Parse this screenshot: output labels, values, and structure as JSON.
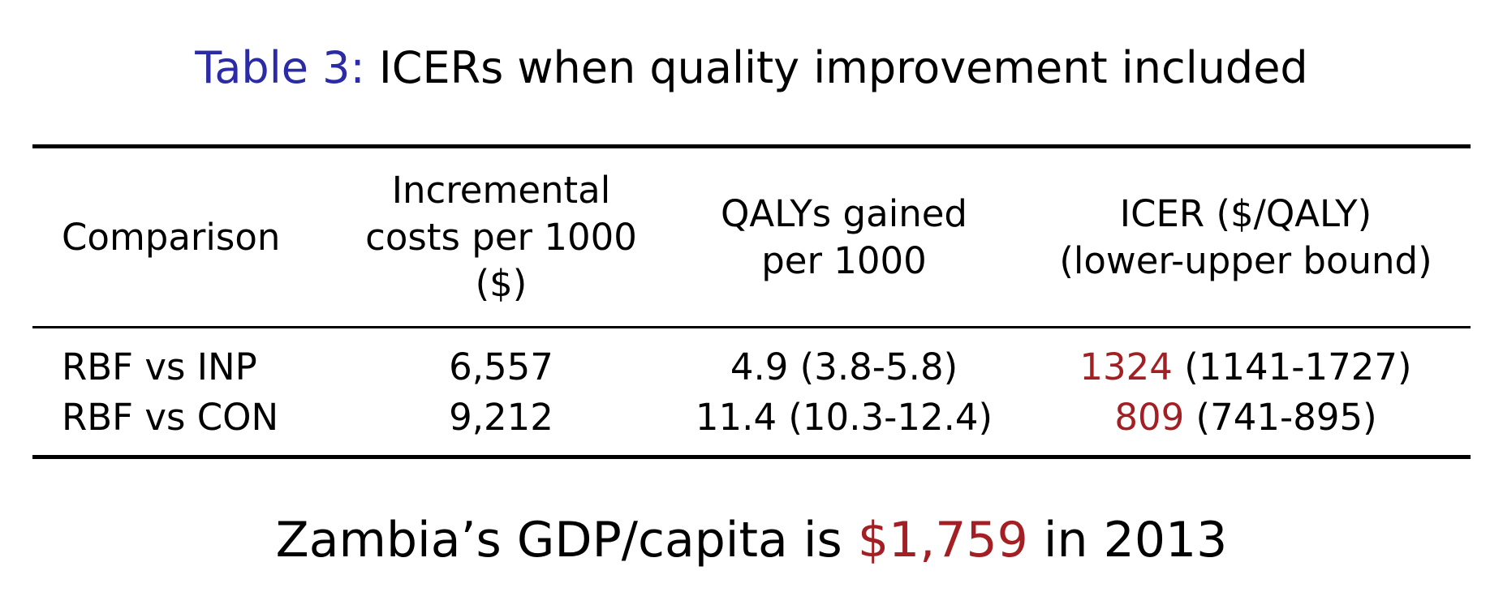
{
  "caption": {
    "label": "Table 3:",
    "text": "ICERs when quality improvement included"
  },
  "table": {
    "headers": {
      "comparison": "Comparison",
      "incremental_costs": [
        "Incremental",
        "costs per 1000",
        "($)"
      ],
      "qalys": [
        "QALYs gained",
        "per 1000"
      ],
      "icer": [
        "ICER ($/QALY)",
        "(lower-upper bound)"
      ]
    },
    "rows": [
      {
        "comparison": "RBF vs INP",
        "incremental_costs": "6,557",
        "qalys": "4.9 (3.8-5.8)",
        "icer_value": "1324",
        "icer_bounds": "(1141-1727)"
      },
      {
        "comparison": "RBF vs CON",
        "incremental_costs": "9,212",
        "qalys": "11.4 (10.3-12.4)",
        "icer_value": "809",
        "icer_bounds": "(741-895)"
      }
    ]
  },
  "note": {
    "prefix": "Zambia’s GDP/capita is",
    "amount": "$1,759",
    "suffix": "in 2013"
  },
  "colors": {
    "caption_label": "#2b2ba6",
    "highlight": "#a31f24",
    "text": "#000000"
  }
}
